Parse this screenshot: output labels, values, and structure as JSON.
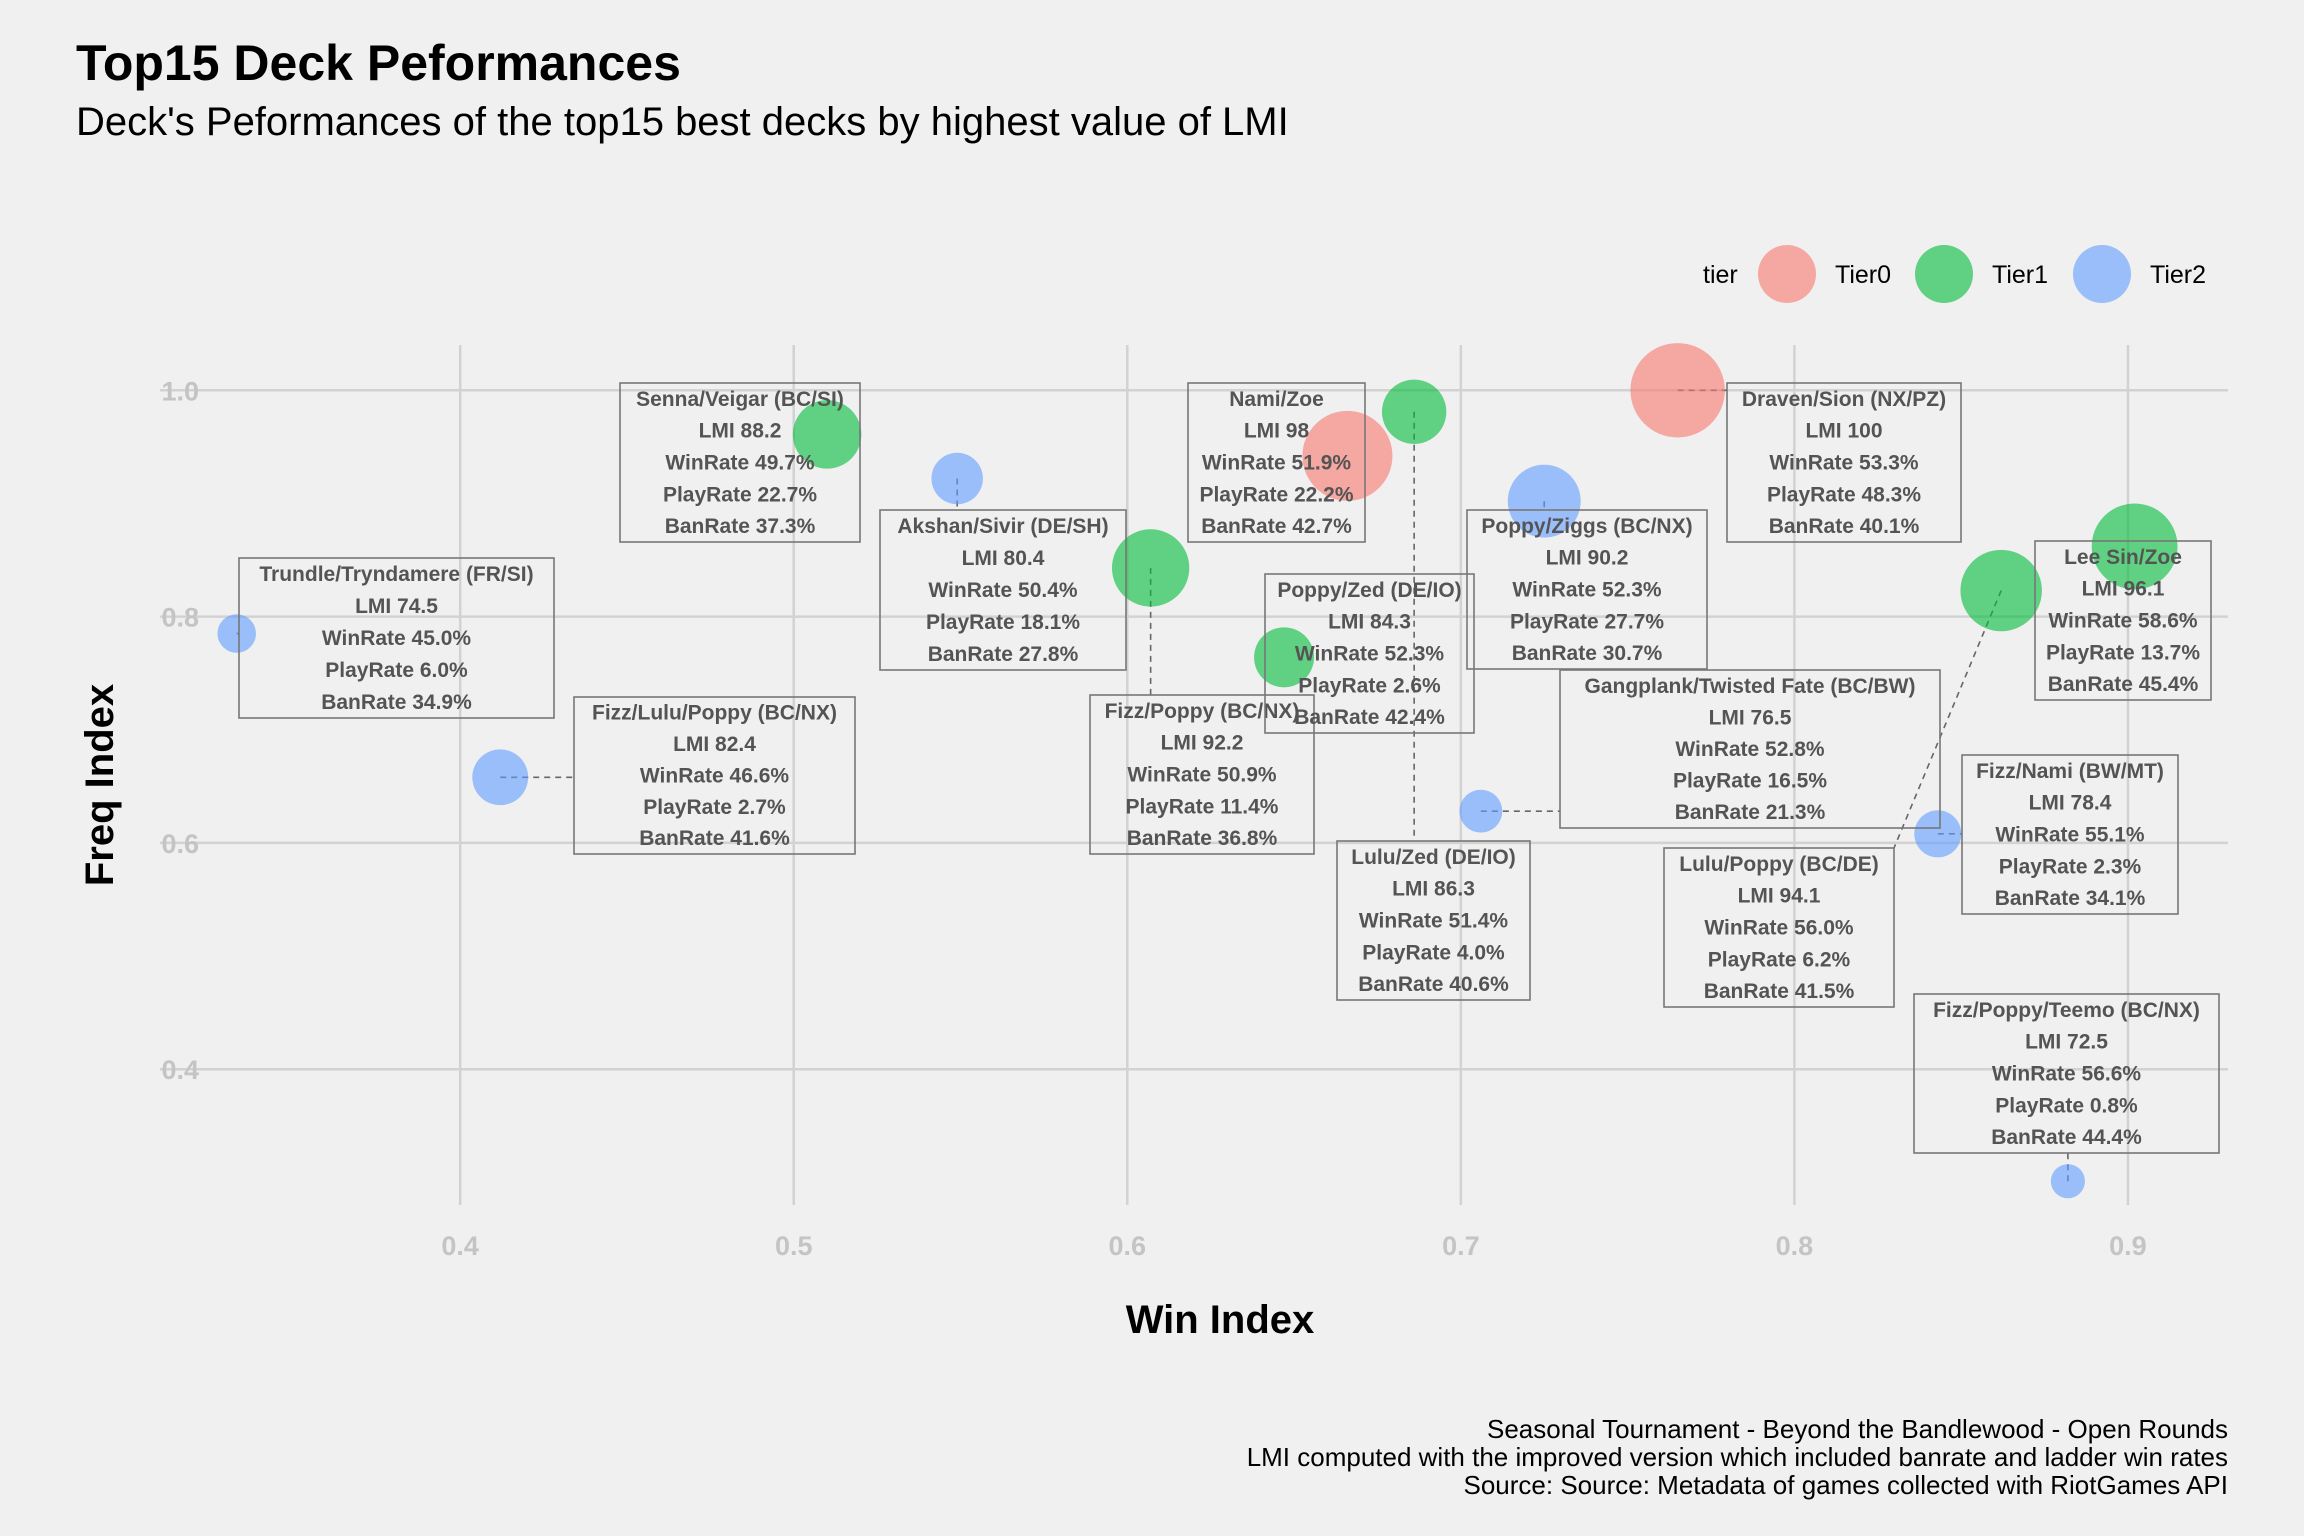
{
  "title": "Top15 Deck Peformances",
  "subtitle": "Deck's Peformances of the top15 best decks by highest value of LMI",
  "captions": [
    "Seasonal Tournament - Beyond the Bandlewood - Open Rounds",
    "LMI computed with the improved version which included banrate and ladder win rates",
    "Source: Source: Metadata of games collected with RiotGames API"
  ],
  "chart_data": {
    "type": "scatter",
    "xlabel": "Win Index",
    "ylabel": "Freq Index",
    "xlim": [
      0.31,
      0.93
    ],
    "ylim": [
      0.28,
      1.04
    ],
    "x_ticks": [
      "0.4",
      "0.5",
      "0.6",
      "0.7",
      "0.8",
      "0.9"
    ],
    "y_ticks": [
      "0.4",
      "0.6",
      "0.8",
      "1.0"
    ],
    "grid": true,
    "legend": {
      "title": "tier",
      "placement": "top-right",
      "entries": [
        {
          "name": "Tier0",
          "color": "#F8766D"
        },
        {
          "name": "Tier1",
          "color": "#00BA38"
        },
        {
          "name": "Tier2",
          "color": "#619CFF"
        }
      ]
    },
    "points": [
      {
        "deck": "Draven/Sion (NX/PZ)",
        "tier": "Tier0",
        "x": 0.765,
        "y": 1.0,
        "lmi": 100,
        "lines": [
          "Draven/Sion (NX/PZ)",
          "LMI 100",
          "WinRate 53.3%",
          "PlayRate 48.3%",
          "BanRate 40.1%"
        ]
      },
      {
        "deck": "Nami/Zoe",
        "tier": "Tier0",
        "x": 0.666,
        "y": 0.942,
        "lmi": 98,
        "lines": [
          "Nami/Zoe",
          "LMI 98",
          "WinRate 51.9%",
          "PlayRate 22.2%",
          "BanRate 42.7%"
        ]
      },
      {
        "deck": "Lee Sin/Zoe",
        "tier": "Tier1",
        "x": 0.902,
        "y": 0.862,
        "lmi": 96.1,
        "lines": [
          "Lee Sin/Zoe",
          "LMI 96.1",
          "WinRate 58.6%",
          "PlayRate 13.7%",
          "BanRate 45.4%"
        ]
      },
      {
        "deck": "Lulu/Poppy (BC/DE)",
        "tier": "Tier1",
        "x": 0.862,
        "y": 0.823,
        "lmi": 94.1,
        "lines": [
          "Lulu/Poppy (BC/DE)",
          "LMI 94.1",
          "WinRate 56.0%",
          "PlayRate 6.2%",
          "BanRate 41.5%"
        ]
      },
      {
        "deck": "Fizz/Poppy (BC/NX)",
        "tier": "Tier1",
        "x": 0.607,
        "y": 0.843,
        "lmi": 92.2,
        "lines": [
          "Fizz/Poppy (BC/NX)",
          "LMI 92.2",
          "WinRate 50.9%",
          "PlayRate 11.4%",
          "BanRate 36.8%"
        ]
      },
      {
        "deck": "Poppy/Ziggs (BC/NX)",
        "tier": "Tier2",
        "x": 0.725,
        "y": 0.902,
        "lmi": 90.2,
        "lines": [
          "Poppy/Ziggs (BC/NX)",
          "LMI 90.2",
          "WinRate 52.3%",
          "PlayRate 27.7%",
          "BanRate 30.7%"
        ]
      },
      {
        "deck": "Senna/Veigar (BC/SI)",
        "tier": "Tier1",
        "x": 0.51,
        "y": 0.961,
        "lmi": 88.2,
        "lines": [
          "Senna/Veigar (BC/SI)",
          "LMI 88.2",
          "WinRate 49.7%",
          "PlayRate 22.7%",
          "BanRate 37.3%"
        ]
      },
      {
        "deck": "Lulu/Zed (DE/IO)",
        "tier": "Tier1",
        "x": 0.686,
        "y": 0.981,
        "lmi": 86.3,
        "lines": [
          "Lulu/Zed (DE/IO)",
          "LMI 86.3",
          "WinRate 51.4%",
          "PlayRate 4.0%",
          "BanRate 40.6%"
        ]
      },
      {
        "deck": "Poppy/Zed (DE/IO)",
        "tier": "Tier1",
        "x": 0.647,
        "y": 0.764,
        "lmi": 84.3,
        "lines": [
          "Poppy/Zed (DE/IO)",
          "LMI 84.3",
          "WinRate 52.3%",
          "PlayRate 2.6%",
          "BanRate 42.4%"
        ]
      },
      {
        "deck": "Fizz/Lulu/Poppy (BC/NX)",
        "tier": "Tier2",
        "x": 0.412,
        "y": 0.658,
        "lmi": 82.4,
        "lines": [
          "Fizz/Lulu/Poppy (BC/NX)",
          "LMI 82.4",
          "WinRate 46.6%",
          "PlayRate 2.7%",
          "BanRate 41.6%"
        ]
      },
      {
        "deck": "Akshan/Sivir (DE/SH)",
        "tier": "Tier2",
        "x": 0.549,
        "y": 0.922,
        "lmi": 80.4,
        "lines": [
          "Akshan/Sivir (DE/SH)",
          "LMI 80.4",
          "WinRate 50.4%",
          "PlayRate 18.1%",
          "BanRate 27.8%"
        ]
      },
      {
        "deck": "Fizz/Nami (BW/MT)",
        "tier": "Tier2",
        "x": 0.843,
        "y": 0.608,
        "lmi": 78.4,
        "lines": [
          "Fizz/Nami (BW/MT)",
          "LMI 78.4",
          "WinRate 55.1%",
          "PlayRate 2.3%",
          "BanRate 34.1%"
        ]
      },
      {
        "deck": "Gangplank/Twisted Fate (BC/BW)",
        "tier": "Tier2",
        "x": 0.706,
        "y": 0.628,
        "lmi": 76.5,
        "lines": [
          "Gangplank/Twisted Fate (BC/BW)",
          "LMI 76.5",
          "WinRate 52.8%",
          "PlayRate 16.5%",
          "BanRate 21.3%"
        ]
      },
      {
        "deck": "Trundle/Tryndamere (FR/SI)",
        "tier": "Tier2",
        "x": 0.333,
        "y": 0.785,
        "lmi": 74.5,
        "lines": [
          "Trundle/Tryndamere (FR/SI)",
          "LMI 74.5",
          "WinRate 45.0%",
          "PlayRate 6.0%",
          "BanRate 34.9%"
        ]
      },
      {
        "deck": "Fizz/Poppy/Teemo (BC/NX)",
        "tier": "Tier2",
        "x": 0.882,
        "y": 0.301,
        "lmi": 72.5,
        "lines": [
          "Fizz/Poppy/Teemo (BC/NX)",
          "LMI 72.5",
          "WinRate 56.6%",
          "PlayRate 0.8%",
          "BanRate 44.4%"
        ]
      }
    ]
  }
}
